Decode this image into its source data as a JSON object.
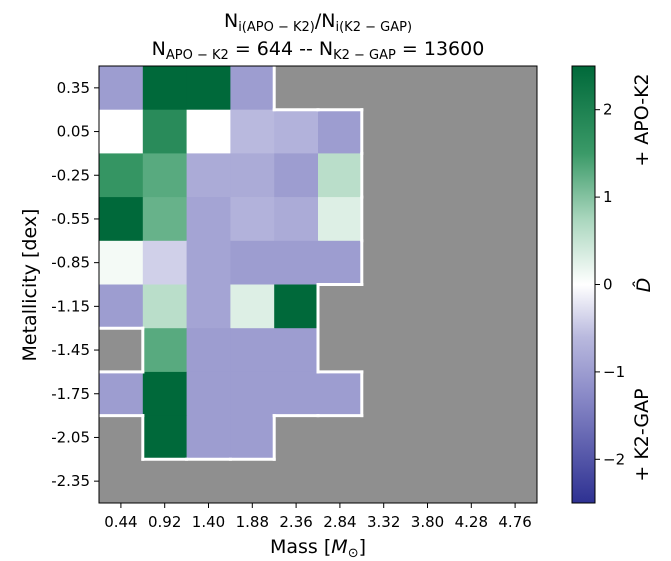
{
  "chart_data": {
    "type": "heatmap",
    "title": {
      "line1": {
        "n1": "N",
        "n1_sub": "i(APO − K2)",
        "sep": "/",
        "n2": "N",
        "n2_sub": "i(K2 − GAP)"
      },
      "line2": {
        "a": "N",
        "a_sub": "APO − K2",
        "a_val": " = 644 -- ",
        "b": "N",
        "b_sub": "K2 − GAP",
        "b_val": " = 13600"
      }
    },
    "xlabel": {
      "text": "Mass [",
      "math": "M",
      "sub": "⊙",
      "close": "]"
    },
    "ylabel": "Metallicity [dex]",
    "x_ticks": [
      "0.44",
      "0.92",
      "1.40",
      "1.88",
      "2.36",
      "2.84",
      "3.32",
      "3.80",
      "4.28",
      "4.76"
    ],
    "y_ticks": [
      "0.35",
      "0.05",
      "-0.25",
      "-0.55",
      "-0.85",
      "-1.15",
      "-1.45",
      "-1.75",
      "-2.05",
      "-2.35"
    ],
    "x_centers": [
      0.44,
      0.92,
      1.4,
      1.88,
      2.36,
      2.84,
      3.32,
      3.8,
      4.28,
      4.76
    ],
    "y_centers": [
      0.35,
      0.05,
      -0.25,
      -0.55,
      -0.85,
      -1.15,
      -1.45,
      -1.75,
      -2.05,
      -2.35
    ],
    "values": [
      [
        -1.0,
        2.5,
        2.5,
        -1.0,
        null,
        null,
        null,
        null,
        null,
        null
      ],
      [
        0.0,
        1.8,
        0.0,
        -0.6,
        -0.7,
        -1.0,
        null,
        null,
        null,
        null
      ],
      [
        1.6,
        1.3,
        -0.8,
        -0.8,
        -1.0,
        0.6,
        null,
        null,
        null,
        null
      ],
      [
        2.5,
        1.2,
        -0.9,
        -0.7,
        -0.8,
        0.3,
        null,
        null,
        null,
        null
      ],
      [
        0.1,
        -0.4,
        -0.9,
        -1.0,
        -1.0,
        -1.0,
        null,
        null,
        null,
        null
      ],
      [
        -1.0,
        0.6,
        -0.9,
        0.3,
        2.5,
        null,
        null,
        null,
        null,
        null
      ],
      [
        null,
        1.3,
        -1.0,
        -1.0,
        -1.0,
        null,
        null,
        null,
        null,
        null
      ],
      [
        -1.0,
        2.5,
        -1.0,
        -1.0,
        -1.0,
        -1.0,
        null,
        null,
        null,
        null
      ],
      [
        null,
        2.5,
        -1.0,
        -1.0,
        null,
        null,
        null,
        null,
        null,
        null
      ],
      [
        null,
        null,
        null,
        null,
        null,
        null,
        null,
        null,
        null,
        null
      ]
    ],
    "colorbar": {
      "range": [
        -2.5,
        2.5
      ],
      "ticks": [
        "2",
        "1",
        "0",
        "−1",
        "−2"
      ],
      "tick_values": [
        2,
        1,
        0,
        -1,
        -2
      ],
      "label": "D̂",
      "top_label": "+ APO-K2",
      "bottom_label": "+ K2-GAP"
    },
    "colors": {
      "empty": "#8f8f8f",
      "boundary": "#ffffff",
      "positive_max": "#00693a",
      "negative_max": "#2e3192",
      "zero": "#ffffff"
    }
  }
}
